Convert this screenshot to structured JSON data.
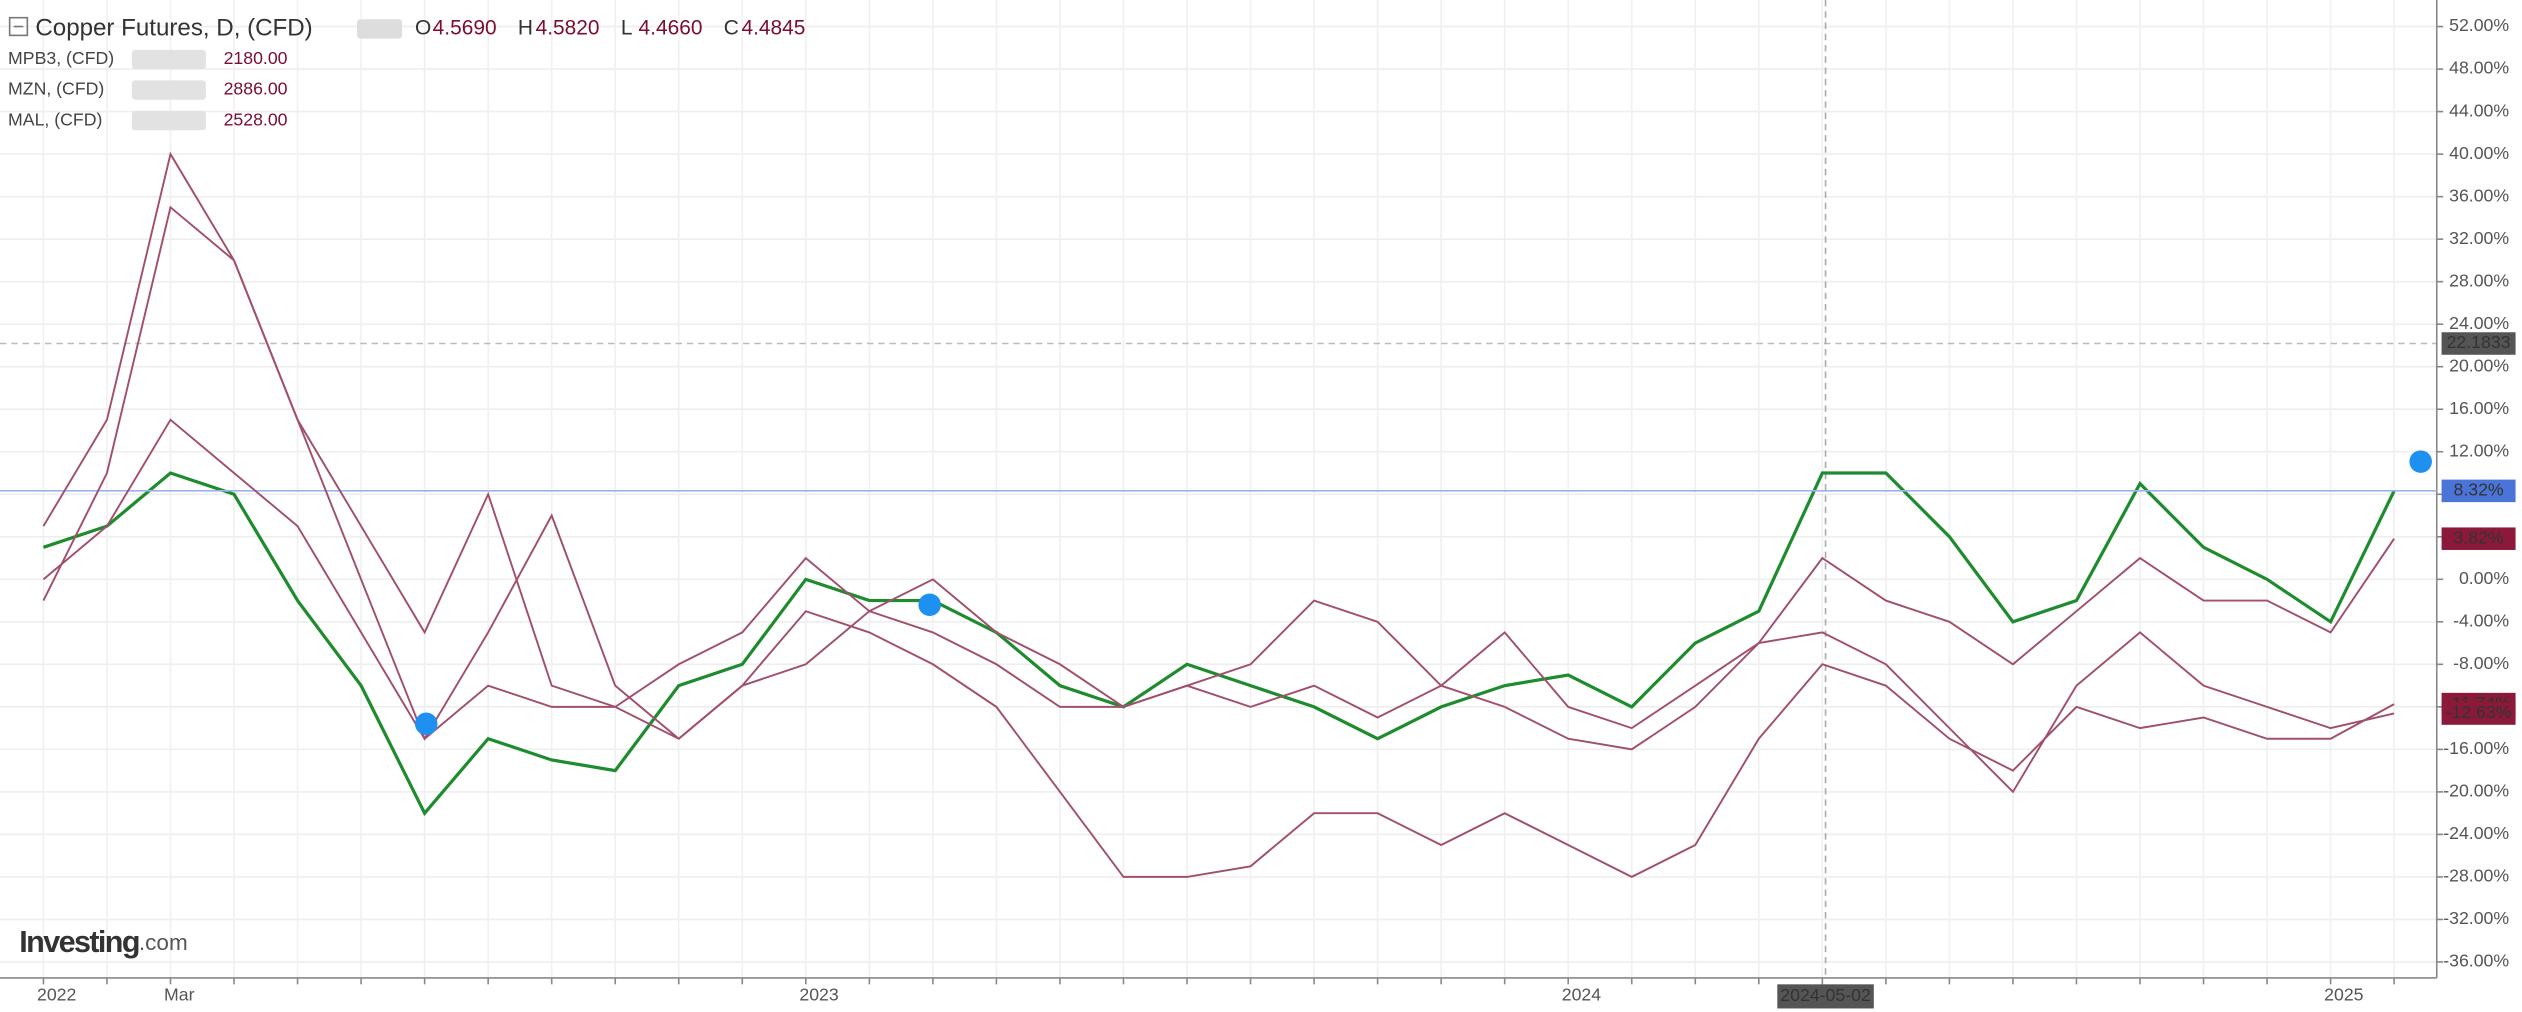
{
  "chart_data": {
    "type": "line",
    "title": "Copper Futures, D, (CFD)",
    "ohlc": [
      {
        "label": "O",
        "value": "4.5690"
      },
      {
        "label": "H",
        "value": "4.5820"
      },
      {
        "label": "L",
        "value": "4.4660"
      },
      {
        "label": "C",
        "value": "4.4845"
      }
    ],
    "categories": [
      "2022",
      null,
      "Mar",
      null,
      null,
      null,
      null,
      null,
      null,
      null,
      null,
      null,
      "2023",
      null,
      null,
      null,
      null,
      null,
      null,
      null,
      null,
      null,
      null,
      null,
      "2024",
      null,
      null,
      null,
      null,
      null,
      null,
      null,
      null,
      null,
      null,
      null,
      "2025",
      null
    ],
    "crosshair_label": "2024-05-02",
    "crosshair_value": 22.1833,
    "ylim": [
      -37.5,
      54.5
    ],
    "yticks": [
      {
        "value": 52,
        "label": "52.00%"
      },
      {
        "value": 48,
        "label": "48.00%"
      },
      {
        "value": 44,
        "label": "44.00%"
      },
      {
        "value": 40,
        "label": "40.00%"
      },
      {
        "value": 36,
        "label": "36.00%"
      },
      {
        "value": 32,
        "label": "32.00%"
      },
      {
        "value": 28,
        "label": "28.00%"
      },
      {
        "value": 24,
        "label": "24.00%"
      },
      {
        "value": 20,
        "label": "20.00%"
      },
      {
        "value": 16,
        "label": "16.00%"
      },
      {
        "value": 12,
        "label": "12.00%"
      },
      {
        "value": 8,
        "label": "8.00%"
      },
      {
        "value": 4,
        "label": "4.00%"
      },
      {
        "value": 0,
        "label": "0.00%"
      },
      {
        "value": -4,
        "label": "-4.00%"
      },
      {
        "value": -8,
        "label": "-8.00%"
      },
      {
        "value": -12,
        "label": "-12.00%"
      },
      {
        "value": -16,
        "label": "-16.00%"
      },
      {
        "value": -20,
        "label": "-20.00%"
      },
      {
        "value": -24,
        "label": "-24.00%"
      },
      {
        "value": -28,
        "label": "-28.00%"
      },
      {
        "value": -32,
        "label": "-32.00%"
      },
      {
        "value": -36,
        "label": "-36.00%"
      }
    ],
    "grid": true,
    "series": [
      {
        "name": "Copper Futures, D, (CFD)",
        "color": "#1e8c2e",
        "last_color": "#4a74d8",
        "last_label": "8.32%",
        "values": [
          3,
          5,
          10,
          8,
          -2,
          -10,
          -22,
          -15,
          -17,
          -18,
          -10,
          -8,
          0,
          -2,
          -2,
          -5,
          -10,
          -12,
          -8,
          -10,
          -12,
          -15,
          -12,
          -10,
          -9,
          -12,
          -6,
          -3,
          10,
          10,
          4,
          -4,
          -2,
          9,
          3,
          0,
          -4,
          8.32
        ]
      },
      {
        "name": "MPB3, (CFD)",
        "price": "2180.00",
        "color": "#a0506e",
        "last_color": "#8b1a3a",
        "last_label": "3.82%",
        "values": [
          0,
          5,
          15,
          10,
          5,
          -5,
          -15,
          -10,
          -12,
          -12,
          -8,
          -5,
          2,
          -3,
          -5,
          -8,
          -12,
          -12,
          -10,
          -12,
          -10,
          -13,
          -10,
          -12,
          -15,
          -16,
          -12,
          -6,
          2,
          -2,
          -4,
          -8,
          -3,
          2,
          -2,
          -2,
          -5,
          3.82
        ]
      },
      {
        "name": "MZN, (CFD)",
        "price": "2886.00",
        "color": "#a0506e",
        "last_color": "#8b1a3a",
        "last_label": "-11.74%",
        "values": [
          5,
          15,
          40,
          30,
          15,
          0,
          -15,
          -5,
          6,
          -10,
          -15,
          -10,
          -3,
          -5,
          -8,
          -12,
          -20,
          -28,
          -28,
          -27,
          -22,
          -22,
          -25,
          -22,
          -25,
          -28,
          -25,
          -15,
          -8,
          -10,
          -15,
          -18,
          -12,
          -14,
          -13,
          -15,
          -15,
          -11.74
        ]
      },
      {
        "name": "MAL, (CFD)",
        "price": "2528.00",
        "color": "#a0506e",
        "last_color": "#8b1a3a",
        "last_label": "-12.63%",
        "values": [
          -2,
          10,
          35,
          30,
          15,
          5,
          -5,
          8,
          -10,
          -12,
          -15,
          -10,
          -8,
          -3,
          0,
          -5,
          -8,
          -12,
          -10,
          -8,
          -2,
          -4,
          -10,
          -5,
          -12,
          -14,
          -10,
          -6,
          -5,
          -8,
          -14,
          -20,
          -10,
          -5,
          -10,
          -12,
          -14,
          -12.63
        ]
      }
    ],
    "logo": "Investing",
    "logo_suffix": ".com"
  }
}
